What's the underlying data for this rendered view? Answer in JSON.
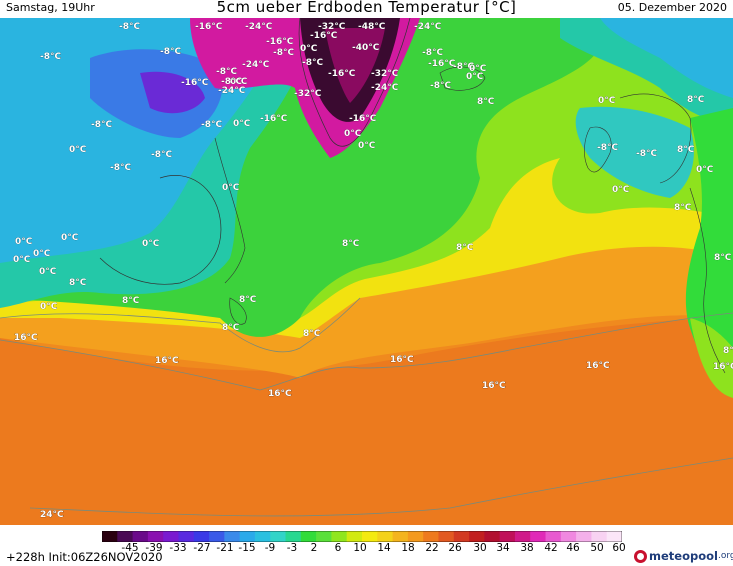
{
  "header": {
    "left": "Samstag, 19Uhr",
    "title": "5cm ueber Erdboden Temperatur [°C]",
    "right": "05. Dezember 2020"
  },
  "map": {
    "labels": [
      "-8°C",
      "-16°C",
      "-24°C",
      "-32°C",
      "-48°C",
      "-24°C",
      "-8°C",
      "-8°C",
      "-8°C",
      "-16°C",
      "-16°C",
      "-8°C",
      "0°C",
      "-40°C",
      "-24°C",
      "-16°C",
      "-8°C",
      "-8°C",
      "0°C",
      "0°C",
      "-8°C",
      "0°C",
      "-8°C",
      "-24°C",
      "-16°C",
      "-8°C",
      "-16°C",
      "-32°C",
      "-32°C",
      "-24°C",
      "-16°C",
      "-8°C",
      "0°C",
      "-8°C",
      "0°C",
      "0°C",
      "-16°C",
      "-8°C",
      "8°C",
      "0°C",
      "0°C",
      "-8°C",
      "-8°C",
      "0°C",
      "8°C",
      "0°C",
      "8°C",
      "0°C",
      "-8°C",
      "8°C",
      "0°C",
      "0°C",
      "0°C",
      "8°C",
      "0°C",
      "0°C",
      "0°C",
      "8°C",
      "8°C",
      "8°C",
      "0°C",
      "8°C",
      "8°C",
      "8°C",
      "8°C",
      "16°C",
      "16°C",
      "16°C",
      "16°C",
      "16°C",
      "16°C",
      "16°C",
      "8°C",
      "24°C"
    ]
  },
  "colorbar": {
    "ticks": [
      "-45",
      "-39",
      "-33",
      "-27",
      "-21",
      "-15",
      "-9",
      "-3",
      "2",
      "6",
      "10",
      "14",
      "18",
      "22",
      "26",
      "30",
      "34",
      "38",
      "42",
      "46",
      "50",
      "60"
    ],
    "colors": [
      "#2a0010",
      "#4a0a55",
      "#6a0a8a",
      "#8a10b0",
      "#7a1ad0",
      "#5a2ae0",
      "#3a3ae6",
      "#3a5ae8",
      "#3a8aea",
      "#2aaaea",
      "#2ac0e0",
      "#32d4c8",
      "#28d890",
      "#32dc3a",
      "#5ae03a",
      "#90e61e",
      "#d2ea10",
      "#f4ea10",
      "#f4d21a",
      "#f4b41e",
      "#f49a1e",
      "#ee7a1e",
      "#e25a22",
      "#d23a22",
      "#c22020",
      "#b21030",
      "#c0105a",
      "#d01a8a",
      "#e02ab8",
      "#e85ad0",
      "#f088e0",
      "#f4b0ea",
      "#f8d2f2",
      "#fbe6f8"
    ]
  },
  "footer": {
    "run": "+228h  Init:06Z26NOV2020",
    "brand": "meteopool",
    "brand_suffix": ".org"
  },
  "palette": {
    "ocean_orange": "#f08a1e",
    "ocean_deep_orange": "#ec7a1e",
    "yellow": "#f2ea10",
    "lime": "#8ee21e",
    "green": "#3cd23c",
    "teal": "#24c8a8",
    "cyan": "#2ab4e0",
    "blue": "#3a7ae6",
    "violet": "#6a2ad6",
    "magenta": "#d21aa0",
    "dark": "#3a0a30"
  }
}
